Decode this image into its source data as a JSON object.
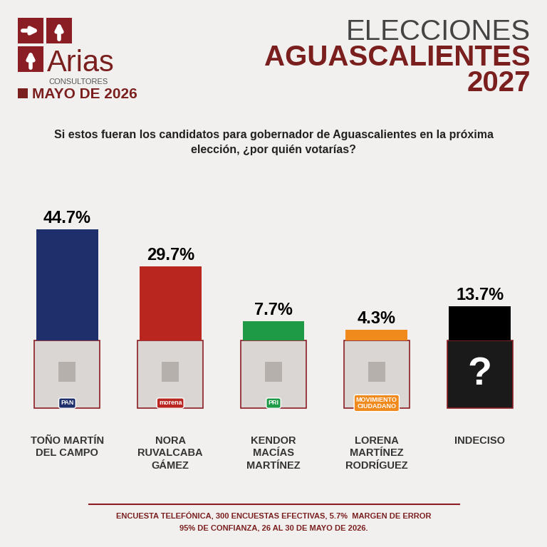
{
  "header": {
    "logo": "Arias",
    "logo_sub": "CONSULTORES",
    "date": "MAYO DE 2026",
    "title_lines": [
      "ELECCIONES",
      "AGUASCALIENTES",
      "2027"
    ]
  },
  "chart_data": {
    "type": "bar",
    "title": "Si estos fueran los candidatos para gobernador de Aguascalientes en la próxima elección, ¿por quién votarías?",
    "categories": [
      "TOÑO MARTÍN DEL CAMPO",
      "NORA RUVALCABA GÁMEZ",
      "KENDOR MACÍAS MARTÍNEZ",
      "LORENA MARTÍNEZ RODRÍGUEZ",
      "INDECISO"
    ],
    "values": [
      44.7,
      29.7,
      7.7,
      4.3,
      13.7
    ],
    "value_labels": [
      "44.7%",
      "29.7%",
      "7.7%",
      "4.3%",
      "13.7%"
    ],
    "colors": [
      "#1f2f6b",
      "#b8261f",
      "#1e9a47",
      "#f08a1d",
      "#000000"
    ],
    "data_labels": true,
    "tick_labels": false
  },
  "candidate_cards": {
    "parties": [
      "PAN",
      "morena",
      "PRI",
      "MOVIMIENTO CIUDADANO",
      null
    ],
    "unknown_mark": "?"
  },
  "footnote": [
    "ENCUESTA TELEFÓNICA, 300 ENCUESTAS EFECTIVAS, 5.7%  MARGEN DE ERROR",
    "95% DE CONFIANZA, 26 AL 30 DE MAYO DE 2026."
  ]
}
